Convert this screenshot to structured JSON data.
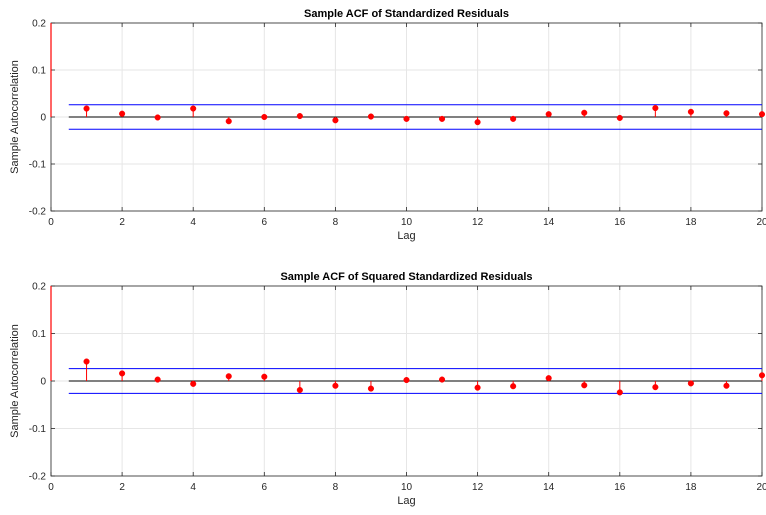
{
  "chart_data": [
    {
      "type": "stem",
      "title": "Sample ACF of Standardized Residuals",
      "xlabel": "Lag",
      "ylabel": "Sample Autocorrelation",
      "xlim": [
        0,
        20
      ],
      "ylim": [
        -0.2,
        0.2
      ],
      "xticks": [
        "0",
        "2",
        "4",
        "6",
        "8",
        "10",
        "12",
        "14",
        "16",
        "18",
        "20"
      ],
      "yticks": [
        "-0.2",
        "-0.1",
        "0",
        "0.1",
        "0.2"
      ],
      "grid": true,
      "lag0_value": 1,
      "confidence_bounds": [
        0.026,
        -0.026
      ],
      "lags": [
        1,
        2,
        3,
        4,
        5,
        6,
        7,
        8,
        9,
        10,
        11,
        12,
        13,
        14,
        15,
        16,
        17,
        18,
        19,
        20
      ],
      "values": [
        0.018,
        0.007,
        -0.001,
        0.018,
        -0.009,
        0.0,
        0.002,
        -0.007,
        0.001,
        -0.004,
        -0.004,
        -0.011,
        -0.004,
        0.006,
        0.009,
        -0.002,
        0.019,
        0.011,
        0.008,
        0.006
      ],
      "colors": {
        "stem": "#ff0000",
        "bounds": "#0000ff",
        "axis": "#000000",
        "grid": "#e6e6e6"
      }
    },
    {
      "type": "stem",
      "title": "Sample ACF of Squared Standardized Residuals",
      "xlabel": "Lag",
      "ylabel": "Sample Autocorrelation",
      "xlim": [
        0,
        20
      ],
      "ylim": [
        -0.2,
        0.2
      ],
      "xticks": [
        "0",
        "2",
        "4",
        "6",
        "8",
        "10",
        "12",
        "14",
        "16",
        "18",
        "20"
      ],
      "yticks": [
        "-0.2",
        "-0.1",
        "0",
        "0.1",
        "0.2"
      ],
      "grid": true,
      "lag0_value": 1,
      "confidence_bounds": [
        0.026,
        -0.026
      ],
      "lags": [
        1,
        2,
        3,
        4,
        5,
        6,
        7,
        8,
        9,
        10,
        11,
        12,
        13,
        14,
        15,
        16,
        17,
        18,
        19,
        20
      ],
      "values": [
        0.041,
        0.016,
        0.003,
        -0.006,
        0.01,
        0.009,
        -0.019,
        -0.01,
        -0.016,
        0.002,
        0.003,
        -0.014,
        -0.011,
        0.006,
        -0.009,
        -0.024,
        -0.013,
        -0.005,
        -0.01,
        0.012
      ],
      "colors": {
        "stem": "#ff0000",
        "bounds": "#0000ff",
        "axis": "#000000",
        "grid": "#e6e6e6"
      }
    }
  ]
}
